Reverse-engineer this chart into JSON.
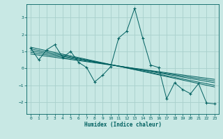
{
  "xlabel": "Humidex (Indice chaleur)",
  "bg_color": "#c8e8e4",
  "grid_color": "#a8d0cc",
  "line_color": "#006060",
  "xlim": [
    -0.5,
    23.5
  ],
  "ylim": [
    -2.7,
    3.8
  ],
  "x_ticks": [
    0,
    1,
    2,
    3,
    4,
    5,
    6,
    7,
    8,
    9,
    10,
    11,
    12,
    13,
    14,
    15,
    16,
    17,
    18,
    19,
    20,
    21,
    22,
    23
  ],
  "y_ticks": [
    -2,
    -1,
    0,
    1,
    2,
    3
  ],
  "data_x": [
    0,
    1,
    2,
    3,
    4,
    5,
    6,
    7,
    8,
    9,
    10,
    11,
    12,
    13,
    14,
    15,
    16,
    17,
    18,
    19,
    20,
    21,
    22,
    23
  ],
  "data_y": [
    1.2,
    0.5,
    1.1,
    1.4,
    0.65,
    1.0,
    0.35,
    0.05,
    -0.8,
    -0.4,
    0.1,
    1.8,
    2.2,
    3.55,
    1.8,
    0.2,
    0.05,
    -1.8,
    -0.85,
    -1.25,
    -1.5,
    -0.9,
    -2.05,
    -2.1
  ],
  "trend_lines": [
    [
      0,
      1.15,
      23,
      -1.0
    ],
    [
      0,
      1.05,
      23,
      -0.85
    ],
    [
      0,
      0.95,
      23,
      -0.75
    ],
    [
      0,
      1.25,
      23,
      -1.1
    ],
    [
      0,
      0.85,
      23,
      -0.65
    ]
  ]
}
